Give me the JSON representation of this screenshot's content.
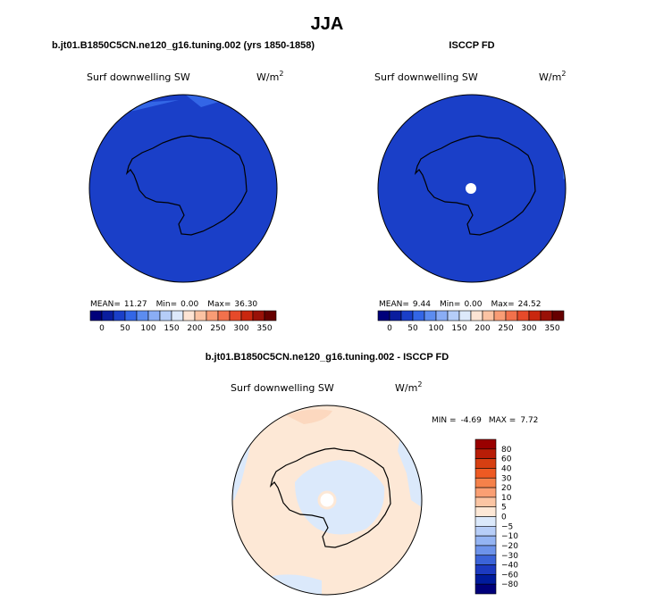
{
  "season": "JJA",
  "panels": [
    {
      "title": "b.jt01.B1850C5CN.ne120_g16.tuning.002 (yrs 1850-1858)",
      "variable": "Surf downwelling SW",
      "units": "W/m",
      "units_sup": "2",
      "stats": {
        "mean_label": "MEAN=",
        "mean": "11.27",
        "min_label": "Min=",
        "min": "0.00",
        "max_label": "Max=",
        "max": "36.30"
      },
      "colorbar_ticks": [
        "0",
        "50",
        "100",
        "150",
        "200",
        "250",
        "300",
        "350"
      ]
    },
    {
      "title": "ISCCP FD",
      "variable": "Surf downwelling SW",
      "units": "W/m",
      "units_sup": "2",
      "stats": {
        "mean_label": "MEAN=",
        "mean": "9.44",
        "min_label": "Min=",
        "min": "0.00",
        "max_label": "Max=",
        "max": "24.52"
      },
      "colorbar_ticks": [
        "0",
        "50",
        "100",
        "150",
        "200",
        "250",
        "300",
        "350"
      ]
    }
  ],
  "diff_panel": {
    "title": "b.jt01.B1850C5CN.ne120_g16.tuning.002 - ISCCP FD",
    "variable": "Surf downwelling SW",
    "units": "W/m",
    "units_sup": "2",
    "min_label": "MIN =",
    "min": "-4.69",
    "max_label": "MAX =",
    "max": "7.72",
    "colorbar_ticks": [
      "80",
      "60",
      "40",
      "30",
      "20",
      "10",
      "5",
      "0",
      "−5",
      "−10",
      "−20",
      "−30",
      "−40",
      "−60",
      "−80"
    ]
  },
  "colors": {
    "seq_scale": [
      "#00007a",
      "#0a1d9e",
      "#1a3fc8",
      "#3366e6",
      "#5c8cf0",
      "#8aadf5",
      "#b5cdf8",
      "#dde9fb",
      "#fde4d4",
      "#fbc3a3",
      "#f89c75",
      "#f2714c",
      "#e64a2a",
      "#c9270f",
      "#991108",
      "#660000"
    ],
    "diff_scale": [
      "#990000",
      "#b81d07",
      "#d63f12",
      "#ee5a23",
      "#f5814a",
      "#fa9f73",
      "#fbc5a3",
      "#fde8d6",
      "#dbe9fb",
      "#b7cef8",
      "#94b4f3",
      "#6d93ea",
      "#3b63d8",
      "#1c3ac0",
      "#001b9c",
      "#00007a"
    ],
    "map_fill": "#1a3fc8",
    "map_fill_light": "#3366e6",
    "diff_bg": "#fde8d6",
    "diff_blue": "#dbe9fb"
  }
}
